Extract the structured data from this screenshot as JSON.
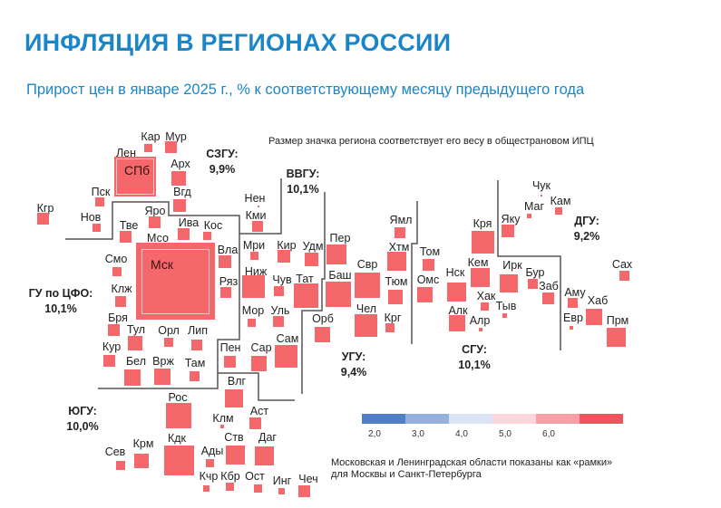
{
  "header": {
    "title": "ИНФЛЯЦИЯ В РЕГИОНАХ РОССИИ",
    "subtitle": "Прирост цен в январе 2025 г., % к соответствующему месяцу предыдущего года"
  },
  "notes": {
    "size_note": "Размер значка региона соответствует его весу в общестрановом ИПЦ",
    "frames_note_line1": "Московская и Ленинградская области показаны как «рамки»",
    "frames_note_line2": "для Москвы и Санкт-Петербурга"
  },
  "colors": {
    "title": "#1a86c8",
    "region_fill": "#f4676b",
    "scale": [
      "#4f7fc4",
      "#94b0dc",
      "#dbe4f4",
      "#fbd6dc",
      "#f7a0a8",
      "#f0555e"
    ]
  },
  "legend": {
    "ticks": [
      "2,0",
      "3,0",
      "4,0",
      "5,0",
      "6,0"
    ]
  },
  "districts": [
    {
      "name": "СЗГУ:",
      "value": "9,9%"
    },
    {
      "name": "ВВГУ:",
      "value": "10,1%"
    },
    {
      "name": "ГУ по ЦФО:",
      "value": "10,1%"
    },
    {
      "name": "ЮГУ:",
      "value": "10,0%"
    },
    {
      "name": "УГУ:",
      "value": "9,4%"
    },
    {
      "name": "СГУ:",
      "value": "10,1%"
    },
    {
      "name": "ДГУ:",
      "value": "9,2%"
    }
  ],
  "framed_regions": [
    {
      "frame_label": "Лен",
      "city_label": "СПб"
    },
    {
      "frame_label": "Мсо",
      "city_label": "Мск"
    }
  ],
  "regions": [
    "Кар",
    "Мур",
    "Арх",
    "Вгд",
    "Пск",
    "Кгр",
    "Нов",
    "Яро",
    "Тве",
    "Ива",
    "Кос",
    "Нен",
    "Кми",
    "Вла",
    "Смо",
    "Мри",
    "Ниж",
    "Ряз",
    "Клж",
    "Кир",
    "Удм",
    "Чув",
    "Тат",
    "Мор",
    "Уль",
    "Пер",
    "Баш",
    "Свр",
    "Чел",
    "Орб",
    "Сам",
    "Пен",
    "Сар",
    "Ямл",
    "Хтм",
    "Тюм",
    "Крг",
    "Том",
    "Омс",
    "Нск",
    "Алк",
    "Кря",
    "Кем",
    "Хак",
    "Алр",
    "Ирк",
    "Тыв",
    "Бур",
    "Заб",
    "Яку",
    "Маг",
    "Чук",
    "Кам",
    "Сах",
    "Аму",
    "Хаб",
    "Евр",
    "Прм",
    "Бря",
    "Тул",
    "Орл",
    "Лип",
    "Кур",
    "Бел",
    "Врж",
    "Там",
    "Влг",
    "Рос",
    "Клм",
    "Аст",
    "Ств",
    "Даг",
    "Кдк",
    "Крм",
    "Сев",
    "Ады",
    "Кчр",
    "Кбр",
    "Ост",
    "Инг",
    "Чеч"
  ]
}
